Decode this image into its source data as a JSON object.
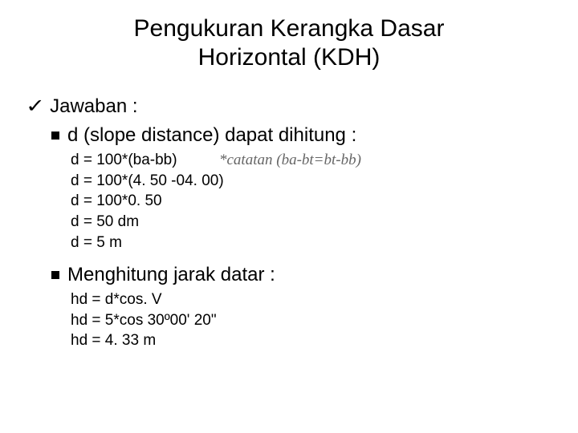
{
  "title_line1": "Pengukuran Kerangka Dasar",
  "title_line2": "Horizontal (KDH)",
  "jawaban_label": "Jawaban :",
  "section1": {
    "heading": "d (slope distance) dapat dihitung :",
    "lines": [
      "d = 100*(ba-bb)",
      "d = 100*(4. 50 -04. 00)",
      "d = 100*0. 50",
      "d = 50 dm",
      "d = 5 m"
    ],
    "annotation": "*catatan (ba-bt=bt-bb)"
  },
  "section2": {
    "heading": "Menghitung jarak datar :",
    "lines": [
      "hd = d*cos. V",
      "hd = 5*cos 30º00' 20\"",
      "hd = 4. 33 m"
    ]
  },
  "colors": {
    "background": "#ffffff",
    "text": "#000000",
    "annotation": "#666666"
  }
}
